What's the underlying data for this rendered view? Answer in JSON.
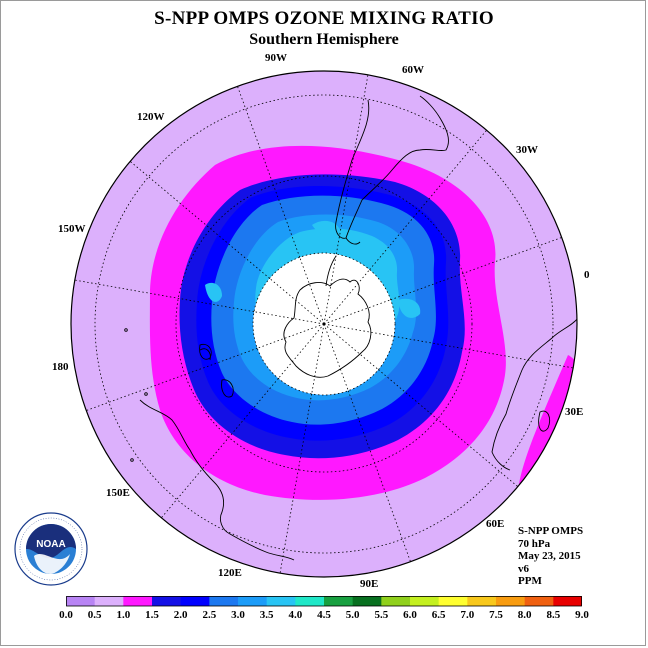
{
  "title": "S-NPP OMPS OZONE MIXING RATIO",
  "subtitle": "Southern Hemisphere",
  "longitude_labels": [
    "0",
    "30W",
    "60W",
    "90W",
    "120W",
    "150W",
    "180",
    "150E",
    "120E",
    "90E",
    "60E",
    "30E"
  ],
  "info": {
    "instrument": "S-NPP OMPS",
    "level": "70 hPa",
    "date": "May 23, 2015",
    "version": "v6",
    "units": "PPM"
  },
  "logo": {
    "text": "NOAA",
    "ring_text": "NATIONAL OCEANIC AND ATMOSPHERIC ADMINISTRATION · U.S. DEPARTMENT OF COMMERCE"
  },
  "colorbar": {
    "ticks": [
      "0.0",
      "0.5",
      "1.0",
      "1.5",
      "2.0",
      "2.5",
      "3.0",
      "3.5",
      "4.0",
      "4.5",
      "5.0",
      "5.5",
      "6.0",
      "6.5",
      "7.0",
      "7.5",
      "8.0",
      "8.5",
      "9.0"
    ],
    "colors": [
      "#b884f4",
      "#dcb0fc",
      "#ff18ff",
      "#1410e6",
      "#0000ff",
      "#1c78f0",
      "#1c9cf8",
      "#28c4f4",
      "#20e8c8",
      "#18a040",
      "#087020",
      "#90d01c",
      "#c4f020",
      "#ffff30",
      "#f8c81c",
      "#f89c10",
      "#f06010",
      "#e80000",
      "#7a4a2a"
    ]
  },
  "map_colors": {
    "background": "#dcb0fc",
    "band_1_0": "#ff18ff",
    "band_1_5": "#1410e6",
    "band_2_0": "#0000ff",
    "band_2_5": "#1c78f0",
    "band_3_0": "#1c9cf8",
    "band_3_5": "#28c4f4",
    "no_data": "#ffffff"
  }
}
